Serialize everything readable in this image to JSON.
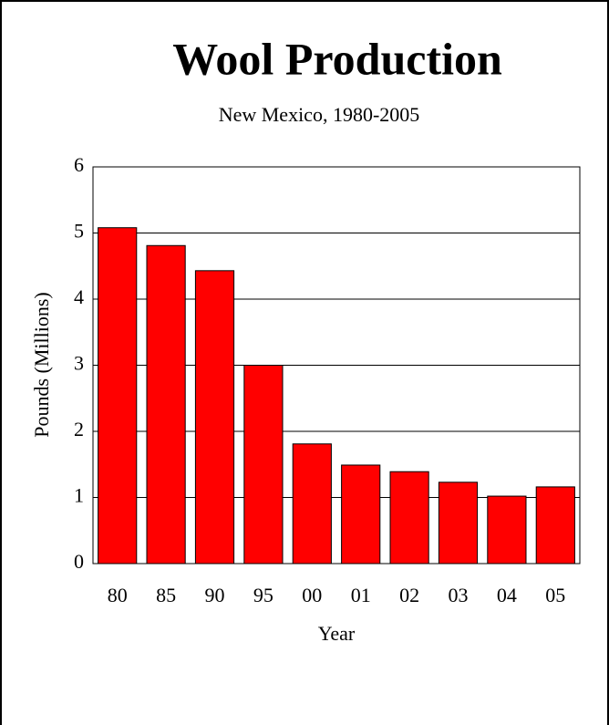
{
  "chart_data": {
    "type": "bar",
    "title": "Wool Production",
    "subtitle": "New Mexico, 1980-2005",
    "x_label": "Year",
    "y_label": "Pounds (Millions)",
    "categories": [
      "80",
      "85",
      "90",
      "95",
      "00",
      "01",
      "02",
      "03",
      "04",
      "05"
    ],
    "values": [
      5.08,
      4.81,
      4.43,
      3.0,
      1.81,
      1.49,
      1.39,
      1.23,
      1.02,
      1.16
    ],
    "color": "#ff0000",
    "ylim": [
      0,
      6
    ],
    "yticks": [
      0,
      1,
      2,
      3,
      4,
      5,
      6
    ],
    "grid": true
  }
}
